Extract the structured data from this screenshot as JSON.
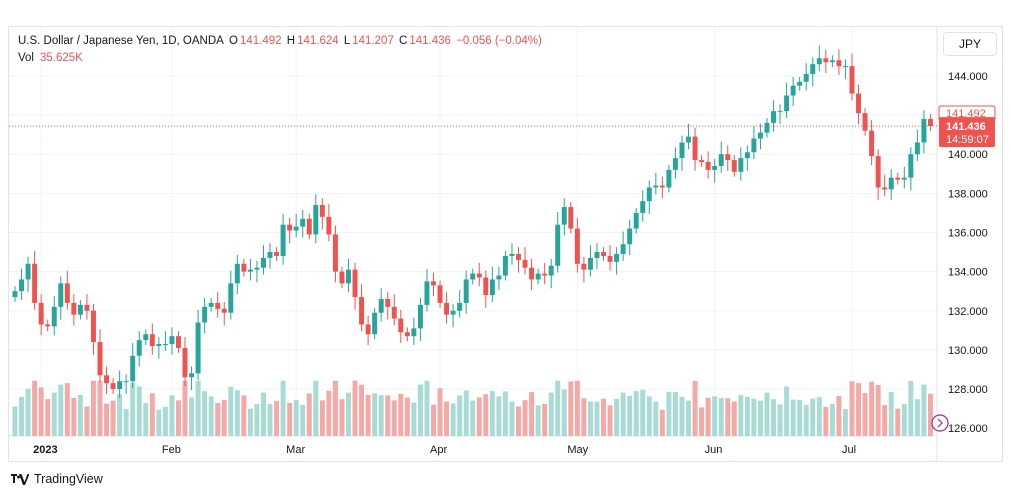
{
  "header": {
    "symbol": "U.S. Dollar / Japanese Yen, 1D, OANDA",
    "o_label": "O",
    "o_value": "141.492",
    "h_label": "H",
    "h_value": "141.624",
    "l_label": "L",
    "l_value": "141.207",
    "c_label": "C",
    "c_value": "141.436",
    "change": "−0.056 (−0.04%)",
    "vol_label": "Vol",
    "vol_value": "35.625K"
  },
  "currency_button": "JPY",
  "footer": {
    "brand": "TradingView"
  },
  "colors": {
    "up": "#26a69a",
    "down": "#ef5350",
    "up_volume": "#a8dbd5",
    "down_volume": "#f5a9a7",
    "grid": "#f0f3fa",
    "axis_text": "#131722"
  },
  "chart_data": {
    "type": "candlestick",
    "title": "U.S. Dollar / Japanese Yen, 1D, OANDA",
    "y_axis": {
      "ticks": [
        "126.000",
        "128.000",
        "130.000",
        "132.000",
        "134.000",
        "136.000",
        "138.000",
        "140.000",
        "142.000",
        "144.000"
      ],
      "range": [
        125.6,
        146.5
      ],
      "side": "right"
    },
    "x_axis": {
      "ticks": [
        "2023",
        "Feb",
        "Mar",
        "Apr",
        "May",
        "Jun",
        "Jul"
      ]
    },
    "price_labels": {
      "open": "141.492",
      "last": "141.436",
      "countdown": "14:59:07"
    },
    "ohlc_closes": [
      133.0,
      133.6,
      134.4,
      132.4,
      131.3,
      131.2,
      132.2,
      133.4,
      132.4,
      131.8,
      132.3,
      132.0,
      130.4,
      128.7,
      128.3,
      128.0,
      128.4,
      128.4,
      129.7,
      130.5,
      130.8,
      130.2,
      130.3,
      130.3,
      130.7,
      130.1,
      128.6,
      128.8,
      131.4,
      132.2,
      132.4,
      132.1,
      131.9,
      133.4,
      134.4,
      134.0,
      134.1,
      134.2,
      134.7,
      135.0,
      134.8,
      136.4,
      136.1,
      136.3,
      136.7,
      135.9,
      137.4,
      136.8,
      135.9,
      134.0,
      133.4,
      134.1,
      132.7,
      131.3,
      130.8,
      131.9,
      132.6,
      132.2,
      131.6,
      130.9,
      130.7,
      131.1,
      132.3,
      133.5,
      133.3,
      132.4,
      131.8,
      132.0,
      132.4,
      133.6,
      133.9,
      133.7,
      132.8,
      133.6,
      133.8,
      134.8,
      134.9,
      134.6,
      134.2,
      133.6,
      133.9,
      133.8,
      134.3,
      136.4,
      137.3,
      136.2,
      134.4,
      134.1,
      134.7,
      135.0,
      134.8,
      134.5,
      134.9,
      135.4,
      136.2,
      137.0,
      137.6,
      138.3,
      138.4,
      138.3,
      139.2,
      139.8,
      140.6,
      140.9,
      139.7,
      139.6,
      139.2,
      139.4,
      140.0,
      139.7,
      139.1,
      139.8,
      140.1,
      140.8,
      141.1,
      141.6,
      142.2,
      142.2,
      143.0,
      143.5,
      143.7,
      144.1,
      144.6,
      144.9,
      144.7,
      144.8,
      144.5,
      144.5,
      143.1,
      142.1,
      141.2,
      139.9,
      138.3,
      138.2,
      138.8,
      138.7,
      138.8,
      140.0,
      140.6,
      141.8,
      141.44
    ],
    "volume_series": {
      "name": "Vol",
      "last": "35.625K"
    }
  }
}
